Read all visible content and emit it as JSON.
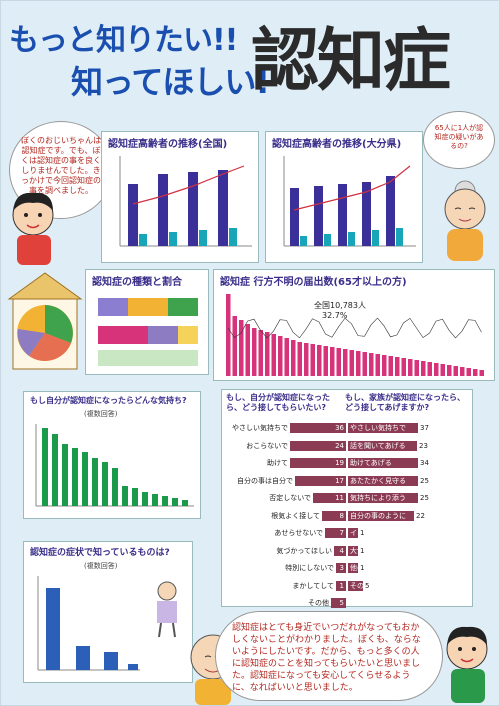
{
  "poster": {
    "title_line1": "もっと知りたい!!",
    "title_line2": "知ってほしい!",
    "title_main": "認知症"
  },
  "boy_bubble": {
    "text": "ぼくのおじいちゃんは認知症です。でも、ぼくは認知症の事を良くしりませんでした。きっかけで今回認知症の事を調べました。"
  },
  "grandma_bubble": {
    "text": "65人に1人が認知症の疑いがあるの?"
  },
  "chart_national": {
    "title": "認知症高齢者の推移(全国)"
  },
  "chart_osaka": {
    "title": "認知症高齢者の推移(大分県)"
  },
  "chart_types": {
    "title": "認知症の種類と割合"
  },
  "chart_missing": {
    "title": "認知症 行方不明の届出数(65才以上の方)",
    "annotation_total": "全国10,783人",
    "annotation_pct": "32.7%"
  },
  "chart_feeling": {
    "title": "もし自分が認知症になったらどんな気持ち?",
    "subtitle": "(複数回答)"
  },
  "chart_want": {
    "title_left": "もし、自分が認知症になったら、どう接してもらいたい?",
    "title_right": "もし、家族が認知症になったら、どう接してあげますか?",
    "rows": [
      {
        "left_label": "やさしい気持ちで",
        "left_value": "36",
        "right_label": "やさしい気持ちで",
        "right_value": "37"
      },
      {
        "left_label": "おこらないで",
        "left_value": "24",
        "right_label": "話を聞いてあげる",
        "right_value": "23"
      },
      {
        "left_label": "助けて",
        "left_value": "19",
        "right_label": "助けてあげる",
        "right_value": "34"
      },
      {
        "left_label": "自分の事は自分で",
        "left_value": "17",
        "right_label": "あたたかく見守る",
        "right_value": "25"
      },
      {
        "left_label": "否定しないで",
        "left_value": "11",
        "right_label": "気持ちにより添う",
        "right_value": "25"
      },
      {
        "left_label": "根気よく接して",
        "left_value": "8",
        "right_label": "自分の事のように",
        "right_value": "22"
      },
      {
        "left_label": "あせらせないで",
        "left_value": "7",
        "right_label": "イライラする",
        "right_value": "1"
      },
      {
        "left_label": "気づかってほしい",
        "left_value": "4",
        "right_label": "大切にする",
        "right_value": "1"
      },
      {
        "left_label": "特別にしないで",
        "left_value": "3",
        "right_label": "他の家族にまかせる",
        "right_value": "1"
      },
      {
        "left_label": "まかしてして",
        "left_value": "1",
        "right_label": "その他",
        "right_value": "5"
      },
      {
        "left_label": "その他",
        "left_value": "5",
        "right_label": "",
        "right_value": ""
      }
    ]
  },
  "chart_symptoms": {
    "title": "認知症の症状で知っているものは?",
    "subtitle": "(複数回答)"
  },
  "bottom_bubble": {
    "text": "認知症はとても身近でいつだれがなってもおかしくないことがわかりました。ぼくも、ならないようにしたいです。だから、もっと多くの人に認知症のことを知ってもらいたいと思いました。認知症になっても安心してくらせるように、なればいいと思いました。"
  },
  "colors": {
    "title_blue": "#1a4fb0",
    "bar_purple": "#3b2f9a",
    "bar_teal": "#19a5b8",
    "bar_green": "#1a9a4a",
    "bar_pink": "#d6337a",
    "bar_blue": "#2c5fb8",
    "bar_maroon": "#8c3b55"
  }
}
